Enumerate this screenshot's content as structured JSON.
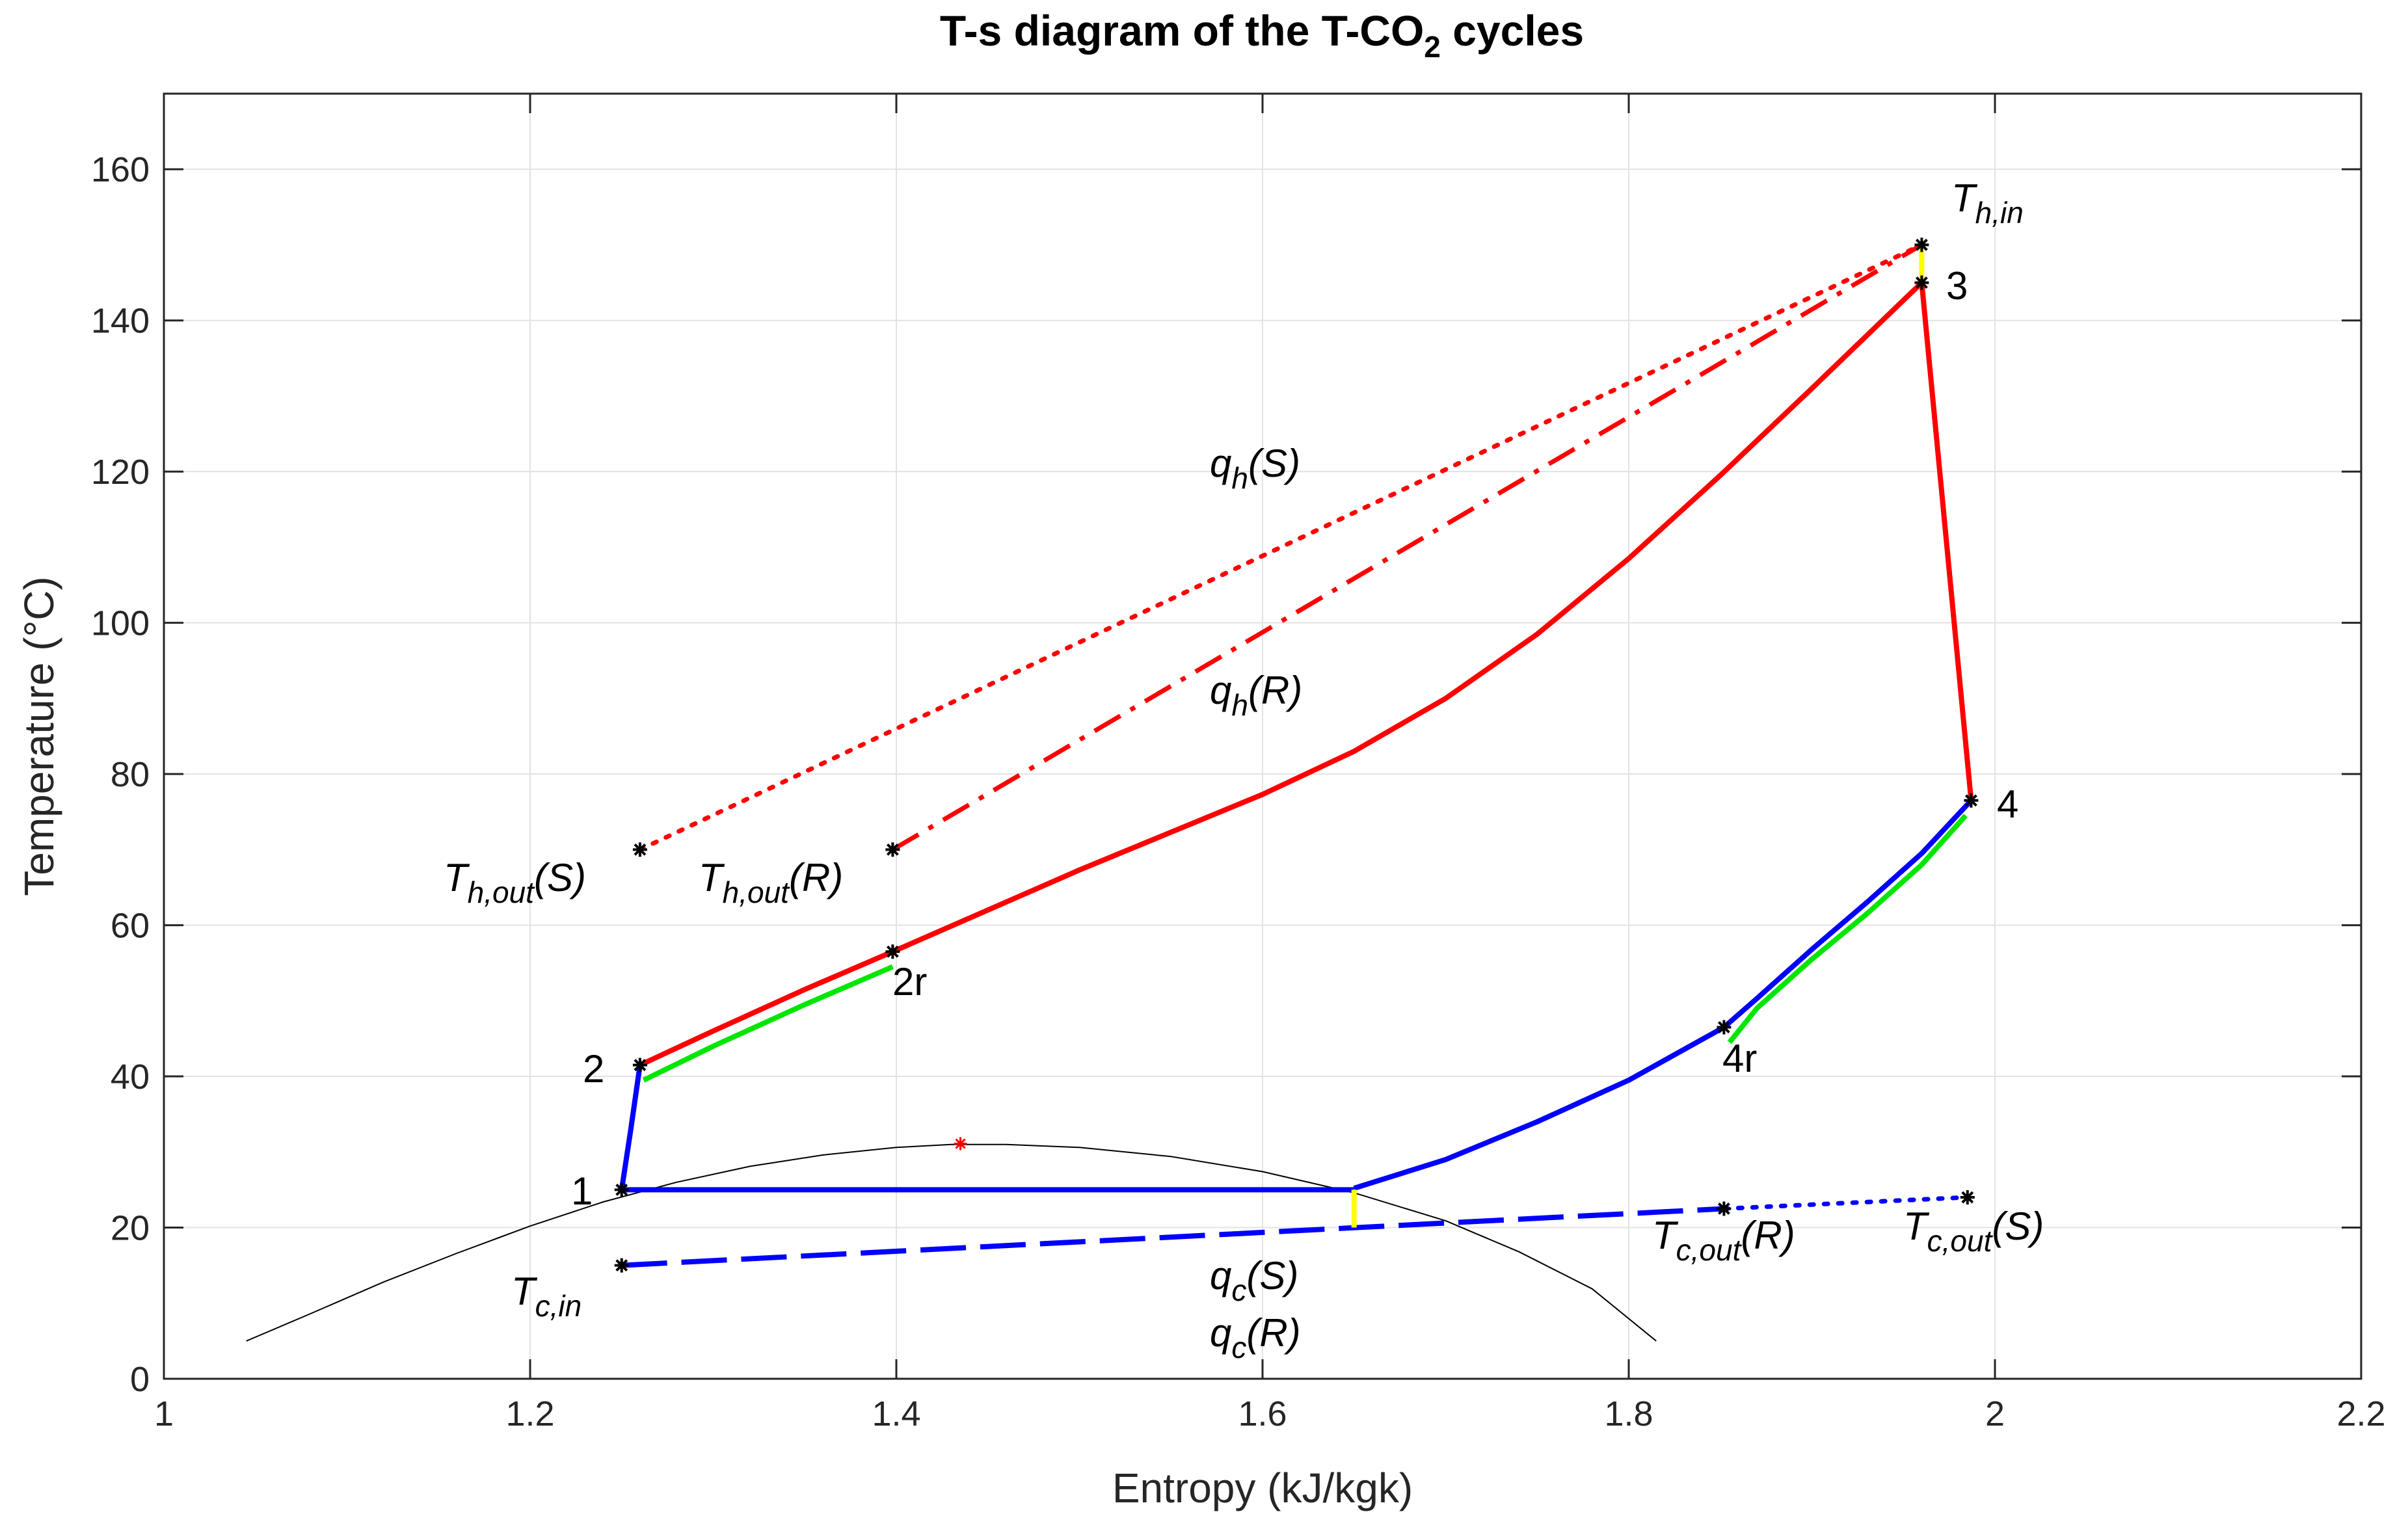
{
  "chart_data": {
    "type": "line",
    "title": "T-s diagram of the T-CO",
    "title_subscript": "2",
    "title_suffix": " cycles",
    "xlabel": "Entropy (kJ/kgk)",
    "ylabel": "Temperature (°C)",
    "xlim": [
      1,
      2.2
    ],
    "ylim": [
      0,
      170
    ],
    "xticks": [
      1,
      1.2,
      1.4,
      1.6,
      1.8,
      2,
      2.2
    ],
    "xtick_labels": [
      "1",
      "1.2",
      "1.4",
      "1.6",
      "1.8",
      "2",
      "2.2"
    ],
    "yticks": [
      0,
      20,
      40,
      60,
      80,
      100,
      120,
      140,
      160
    ],
    "ytick_labels": [
      "0",
      "20",
      "40",
      "60",
      "80",
      "100",
      "120",
      "140",
      "160"
    ],
    "grid": true,
    "colors": {
      "heat": "#ff0000",
      "cool": "#0000ff",
      "recup": "#00e600",
      "pinch": "#ffff00",
      "dome": "#000000",
      "critical": "#ff0000"
    },
    "series": [
      {
        "id": "saturation-dome",
        "color": "#000000",
        "style": "solid",
        "width": 2,
        "points": [
          [
            1.045,
            5
          ],
          [
            1.08,
            8.6
          ],
          [
            1.12,
            12.8
          ],
          [
            1.16,
            16.6
          ],
          [
            1.2,
            20.2
          ],
          [
            1.24,
            23.4
          ],
          [
            1.28,
            26.0
          ],
          [
            1.32,
            28.1
          ],
          [
            1.36,
            29.6
          ],
          [
            1.4,
            30.6
          ],
          [
            1.43,
            31.0
          ],
          [
            1.46,
            31.0
          ],
          [
            1.5,
            30.6
          ],
          [
            1.55,
            29.4
          ],
          [
            1.6,
            27.4
          ],
          [
            1.65,
            24.6
          ],
          [
            1.7,
            20.9
          ],
          [
            1.74,
            16.8
          ],
          [
            1.78,
            11.9
          ],
          [
            1.815,
            5
          ]
        ]
      },
      {
        "id": "pump-1-2",
        "color": "#0000ff",
        "style": "solid",
        "width": 8,
        "points": [
          [
            1.25,
            25
          ],
          [
            1.255,
            33
          ],
          [
            1.26,
            41.5
          ]
        ]
      },
      {
        "id": "recup-cold-2-2r",
        "color": "#ff0000",
        "style": "solid",
        "width": 8,
        "points": [
          [
            1.26,
            41.5
          ],
          [
            1.3,
            46
          ],
          [
            1.35,
            51.5
          ],
          [
            1.398,
            56.5
          ]
        ]
      },
      {
        "id": "heating-2r-3",
        "color": "#ff0000",
        "style": "solid",
        "width": 8,
        "points": [
          [
            1.398,
            56.5
          ],
          [
            1.45,
            62
          ],
          [
            1.5,
            67.3
          ],
          [
            1.55,
            72.3
          ],
          [
            1.6,
            77.3
          ],
          [
            1.65,
            83
          ],
          [
            1.7,
            90
          ],
          [
            1.75,
            98.5
          ],
          [
            1.8,
            108.5
          ],
          [
            1.85,
            119.5
          ],
          [
            1.9,
            131
          ],
          [
            1.93,
            138
          ],
          [
            1.96,
            145
          ]
        ]
      },
      {
        "id": "expansion-3-4",
        "color": "#ff0000",
        "style": "solid",
        "width": 8,
        "points": [
          [
            1.96,
            145
          ],
          [
            1.987,
            76.5
          ]
        ]
      },
      {
        "id": "recup-hot-4-4r",
        "color": "#0000ff",
        "style": "solid",
        "width": 8,
        "points": [
          [
            1.987,
            76.5
          ],
          [
            1.96,
            69.5
          ],
          [
            1.93,
            63
          ],
          [
            1.9,
            56.8
          ],
          [
            1.87,
            50.3
          ],
          [
            1.852,
            46.5
          ]
        ]
      },
      {
        "id": "cooling-4r-sat",
        "color": "#0000ff",
        "style": "solid",
        "width": 8,
        "points": [
          [
            1.852,
            46.5
          ],
          [
            1.8,
            39.5
          ],
          [
            1.75,
            34
          ],
          [
            1.7,
            29
          ],
          [
            1.65,
            25.2
          ]
        ]
      },
      {
        "id": "condensation",
        "color": "#0000ff",
        "style": "solid",
        "width": 8,
        "points": [
          [
            1.65,
            25
          ],
          [
            1.25,
            25
          ]
        ]
      },
      {
        "id": "recup-cold-green",
        "color": "#00e600",
        "style": "solid",
        "width": 8,
        "points": [
          [
            1.262,
            39.5
          ],
          [
            1.3,
            44
          ],
          [
            1.35,
            49.5
          ],
          [
            1.398,
            54.5
          ]
        ]
      },
      {
        "id": "recup-hot-green",
        "color": "#00e600",
        "style": "solid",
        "width": 8,
        "points": [
          [
            1.984,
            74.5
          ],
          [
            1.96,
            68
          ],
          [
            1.93,
            61.5
          ],
          [
            1.9,
            55.5
          ],
          [
            1.87,
            49
          ],
          [
            1.855,
            44.5
          ]
        ]
      },
      {
        "id": "hot-source-S",
        "color": "#ff0000",
        "style": "dotted",
        "width": 7,
        "points": [
          [
            1.26,
            70
          ],
          [
            1.96,
            150
          ]
        ]
      },
      {
        "id": "hot-source-R",
        "color": "#ff0000",
        "style": "dashdot",
        "width": 7,
        "points": [
          [
            1.398,
            70
          ],
          [
            1.96,
            150
          ]
        ]
      },
      {
        "id": "cold-sink-R",
        "color": "#0000ff",
        "style": "dashed",
        "width": 8,
        "points": [
          [
            1.25,
            15
          ],
          [
            1.852,
            22.5
          ]
        ]
      },
      {
        "id": "cold-sink-S",
        "color": "#0000ff",
        "style": "dotted",
        "width": 7,
        "points": [
          [
            1.852,
            22.5
          ],
          [
            1.985,
            24
          ]
        ]
      },
      {
        "id": "pinch-cold",
        "color": "#ffff00",
        "style": "solid",
        "width": 8,
        "points": [
          [
            1.65,
            25
          ],
          [
            1.65,
            20
          ]
        ]
      },
      {
        "id": "pinch-hot",
        "color": "#ffff00",
        "style": "solid",
        "width": 8,
        "points": [
          [
            1.96,
            150
          ],
          [
            1.96,
            145
          ]
        ]
      }
    ],
    "markers": [
      {
        "id": "pt-1",
        "x": 1.25,
        "y": 25
      },
      {
        "id": "pt-2",
        "x": 1.26,
        "y": 41.5
      },
      {
        "id": "pt-2r",
        "x": 1.398,
        "y": 56.5
      },
      {
        "id": "pt-3",
        "x": 1.96,
        "y": 145
      },
      {
        "id": "pt-4",
        "x": 1.987,
        "y": 76.5
      },
      {
        "id": "pt-4r",
        "x": 1.852,
        "y": 46.5
      },
      {
        "id": "pt-th-in",
        "x": 1.96,
        "y": 150
      },
      {
        "id": "pt-th-out-s",
        "x": 1.26,
        "y": 70
      },
      {
        "id": "pt-th-out-r",
        "x": 1.398,
        "y": 70
      },
      {
        "id": "pt-tc-in",
        "x": 1.25,
        "y": 15
      },
      {
        "id": "pt-tc-out-r",
        "x": 1.852,
        "y": 22.5
      },
      {
        "id": "pt-tc-out-s",
        "x": 1.985,
        "y": 24
      }
    ],
    "critical_point": {
      "x": 1.435,
      "y": 31.1
    },
    "annotations": {
      "pt1": "1",
      "pt2": "2",
      "pt2r": "2r",
      "pt3": "3",
      "pt4": "4",
      "pt4r": "4r",
      "th_in": {
        "main": "T",
        "sub": "h,in",
        "suffix": ""
      },
      "th_out_s": {
        "main": "T",
        "sub": "h,out",
        "suffix": "(S)"
      },
      "th_out_r": {
        "main": "T",
        "sub": "h,out",
        "suffix": "(R)"
      },
      "tc_in": {
        "main": "T",
        "sub": "c,in",
        "suffix": ""
      },
      "tc_out_r": {
        "main": "T",
        "sub": "c,out",
        "suffix": "(R)"
      },
      "tc_out_s": {
        "main": "T",
        "sub": "c,out",
        "suffix": "(S)"
      },
      "qh_s": {
        "main": "q",
        "sub": "h",
        "suffix": "(S)"
      },
      "qh_r": {
        "main": "q",
        "sub": "h",
        "suffix": "(R)"
      },
      "qc_s": {
        "main": "q",
        "sub": "c",
        "suffix": "(S)"
      },
      "qc_r": {
        "main": "q",
        "sub": "c",
        "suffix": "(R)"
      }
    }
  }
}
